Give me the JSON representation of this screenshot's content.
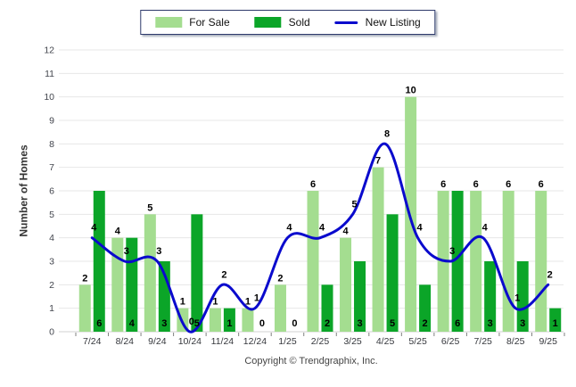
{
  "legend": {
    "for_sale": "For Sale",
    "sold": "Sold",
    "new_listing": "New Listing"
  },
  "footer": {
    "copyright": "Copyright © Trendgraphix, Inc."
  },
  "colors": {
    "for_sale": "#A4DD90",
    "sold": "#0BA528",
    "new_listing": "#0A0ACD",
    "grid": "#E7E7E7",
    "axis_line": "#D2D2D2",
    "tick_mark": "#808080",
    "y_tick_text": "#43464E",
    "x_tick_text": "#35373C",
    "data_label": "#000000"
  },
  "chart_data": {
    "type": "bar",
    "title": "",
    "xlabel": "",
    "ylabel": "Number of Homes",
    "ylim": [
      0,
      12
    ],
    "ytick_step": 1,
    "grid": "horizontal",
    "legend_position": "top-center",
    "categories": [
      "7/24",
      "8/24",
      "9/24",
      "10/24",
      "11/24",
      "12/24",
      "1/25",
      "2/25",
      "3/25",
      "4/25",
      "5/25",
      "6/25",
      "7/25",
      "8/25",
      "9/25"
    ],
    "series": [
      {
        "name": "For Sale",
        "type": "bar",
        "values": [
          2,
          4,
          5,
          1,
          1,
          1,
          2,
          6,
          4,
          7,
          10,
          6,
          6,
          6,
          6
        ]
      },
      {
        "name": "Sold",
        "type": "bar",
        "values": [
          6,
          4,
          3,
          5,
          1,
          0,
          0,
          2,
          3,
          5,
          2,
          6,
          3,
          3,
          1
        ]
      },
      {
        "name": "New Listing",
        "type": "line",
        "values": [
          4,
          3,
          3,
          0,
          2,
          1,
          4,
          4,
          5,
          8,
          4,
          3,
          4,
          1,
          2
        ]
      }
    ]
  }
}
